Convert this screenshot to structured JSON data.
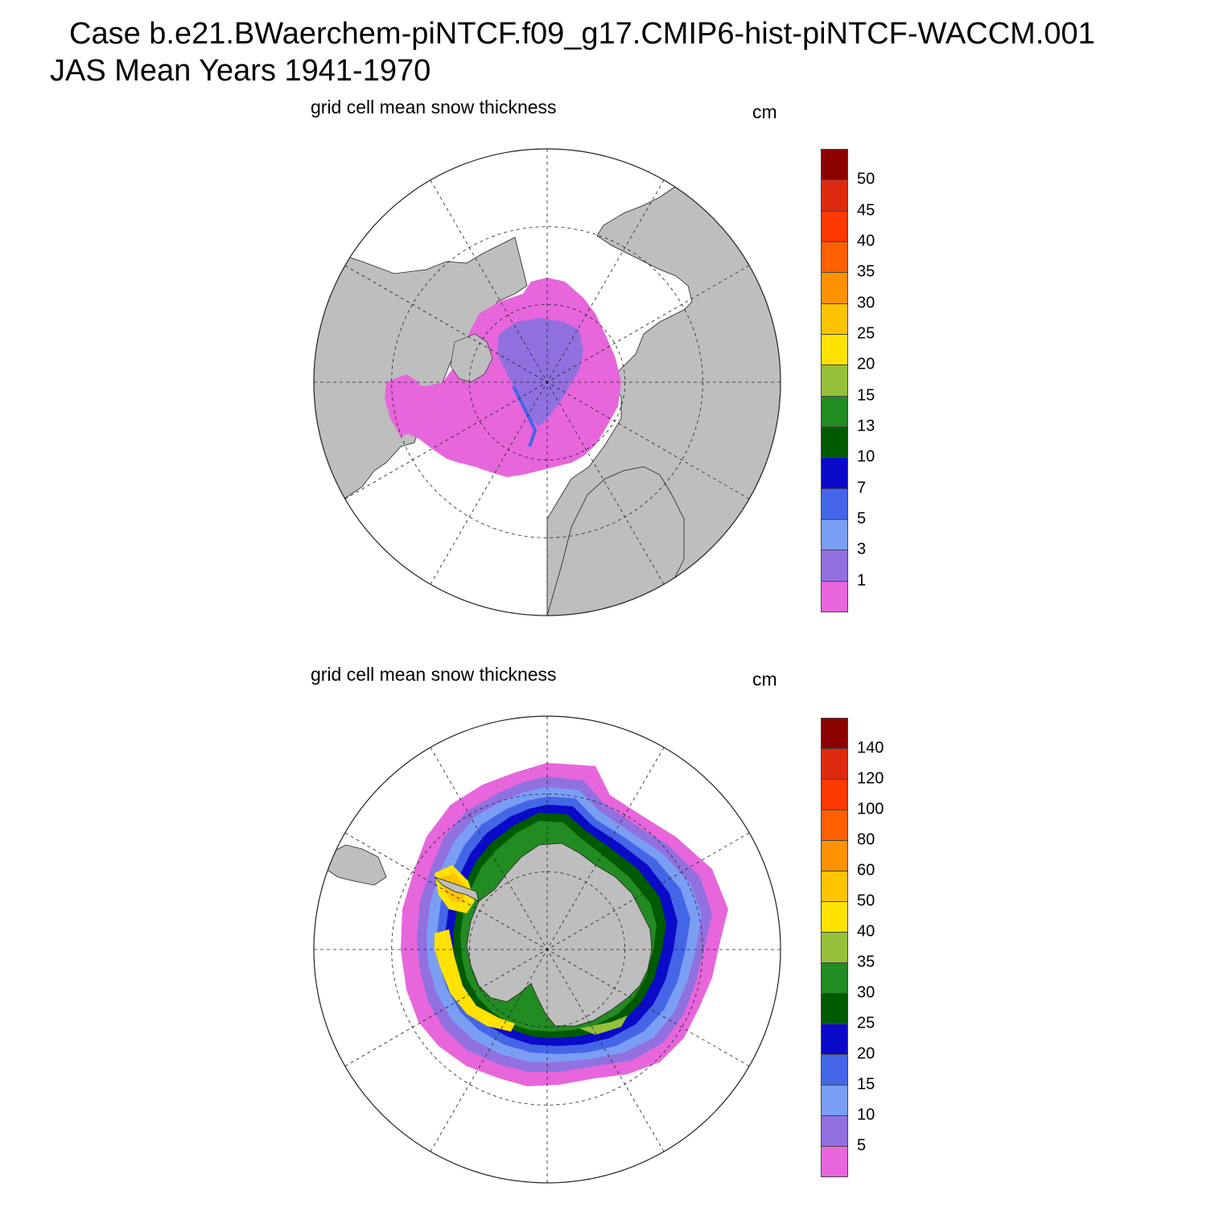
{
  "header": {
    "title": "Case b.e21.BWaerchem-piNTCF.f09_g17.CMIP6-hist-piNTCF-WACCM.001",
    "subtitle": "JAS Mean   Years 1941-1970"
  },
  "panels": [
    {
      "id": "north",
      "label": "grid cell mean snow thickness",
      "units": "cm",
      "colorbar": {
        "colors": [
          "#e766dc",
          "#9170e0",
          "#7b9ef5",
          "#4466e6",
          "#0a0ac8",
          "#005a00",
          "#228b22",
          "#97c03a",
          "#ffe200",
          "#ffc400",
          "#ff9200",
          "#ff6000",
          "#ff3a00",
          "#dc2a10",
          "#8b0000"
        ],
        "labels": [
          "1",
          "3",
          "5",
          "7",
          "10",
          "13",
          "15",
          "20",
          "25",
          "30",
          "35",
          "40",
          "45",
          "50"
        ]
      }
    },
    {
      "id": "south",
      "label": "grid cell mean snow thickness",
      "units": "cm",
      "colorbar": {
        "colors": [
          "#e766dc",
          "#9170e0",
          "#7b9ef5",
          "#4466e6",
          "#0a0ac8",
          "#005a00",
          "#228b22",
          "#97c03a",
          "#ffe200",
          "#ffc400",
          "#ff9200",
          "#ff6000",
          "#ff3a00",
          "#dc2a10",
          "#8b0000"
        ],
        "labels": [
          "5",
          "10",
          "15",
          "20",
          "25",
          "30",
          "35",
          "40",
          "50",
          "60",
          "80",
          "100",
          "120",
          "140"
        ]
      }
    }
  ]
}
